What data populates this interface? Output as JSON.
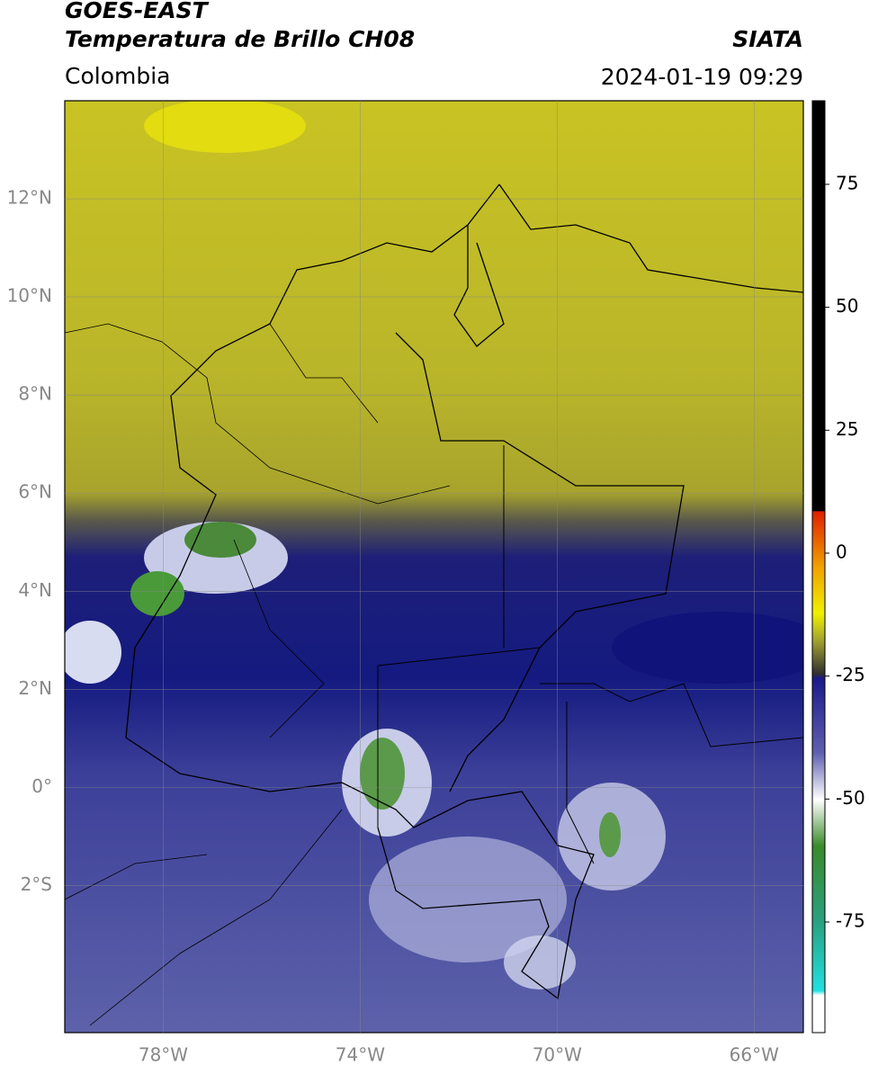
{
  "header": {
    "satellite": "GOES-EAST",
    "product": "Temperatura de Brillo CH08",
    "region": "Colombia",
    "source": "SIATA",
    "timestamp": "2024-01-19 09:29"
  },
  "map": {
    "lonlim": [
      -80,
      -65
    ],
    "latlim": [
      -5,
      14
    ],
    "lat_ticks": [
      {
        "value": 12,
        "label": "12°N"
      },
      {
        "value": 10,
        "label": "10°N"
      },
      {
        "value": 8,
        "label": "8°N"
      },
      {
        "value": 6,
        "label": "6°N"
      },
      {
        "value": 4,
        "label": "4°N"
      },
      {
        "value": 2,
        "label": "2°N"
      },
      {
        "value": 0,
        "label": "0°"
      },
      {
        "value": -2,
        "label": "2°S"
      }
    ],
    "lon_ticks": [
      {
        "value": -78,
        "label": "78°W"
      },
      {
        "value": -74,
        "label": "74°W"
      },
      {
        "value": -70,
        "label": "70°W"
      },
      {
        "value": -66,
        "label": "66°W"
      }
    ]
  },
  "colorbar": {
    "lim": [
      -97.5,
      92
    ],
    "ticks": [
      75,
      50,
      25,
      0,
      -25,
      -50,
      -75
    ]
  }
}
